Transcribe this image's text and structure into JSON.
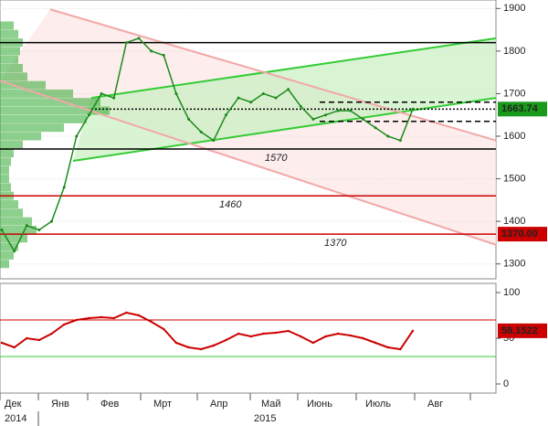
{
  "chart_data": {
    "type": "line",
    "price": {
      "name": "price",
      "color": "#1a8a1a",
      "values": [
        1380,
        1330,
        1390,
        1380,
        1400,
        1480,
        1600,
        1650,
        1700,
        1690,
        1820,
        1830,
        1800,
        1790,
        1700,
        1640,
        1610,
        1590,
        1650,
        1690,
        1680,
        1700,
        1690,
        1710,
        1670,
        1640,
        1650,
        1660,
        1660,
        1640,
        1620,
        1600,
        1590,
        1663.74
      ]
    },
    "ylim": [
      1265,
      1920
    ],
    "yticks": [
      1300,
      1400,
      1500,
      1600,
      1700,
      1800,
      1900
    ],
    "levels": [
      {
        "value": 1820,
        "color": "#000000"
      },
      {
        "value": 1570,
        "color": "#000000",
        "label": "1570"
      },
      {
        "value": 1460,
        "color": "#cc0000",
        "label": "1460"
      },
      {
        "value": 1370,
        "color": "#cc0000",
        "label": "1370"
      }
    ],
    "dashed_levels": [
      1680,
      1635
    ],
    "channels": [
      {
        "color": "#33cc33",
        "start": 1542,
        "end": 1690
      },
      {
        "color": "#33cc33",
        "start": 1690,
        "end": 1830
      },
      {
        "color": "#f2a8a8",
        "start": 1898,
        "end": 1590
      },
      {
        "color": "#f2a8a8",
        "start": 1730,
        "end": 1345
      }
    ],
    "price_tags": [
      {
        "value": 1663.74,
        "color": "#1a9a1a"
      },
      {
        "value": 1370,
        "label": "1370.00",
        "color": "#cc0000"
      }
    ],
    "volume_profile": {
      "color": "#2fa82f",
      "prices": [
        1300,
        1320,
        1340,
        1360,
        1380,
        1400,
        1420,
        1440,
        1460,
        1480,
        1500,
        1520,
        1540,
        1560,
        1580,
        1600,
        1620,
        1640,
        1660,
        1680,
        1700,
        1720,
        1740,
        1760,
        1780,
        1800,
        1820,
        1840,
        1860
      ],
      "values": [
        10,
        15,
        20,
        30,
        40,
        35,
        25,
        20,
        15,
        12,
        10,
        10,
        12,
        15,
        25,
        45,
        70,
        95,
        120,
        110,
        80,
        50,
        30,
        25,
        20,
        22,
        25,
        20,
        15
      ]
    },
    "rsi": {
      "name": "RSI",
      "color": "#cc0000",
      "values": [
        45,
        40,
        50,
        48,
        55,
        65,
        70,
        72,
        73,
        72,
        78,
        75,
        68,
        60,
        45,
        40,
        38,
        42,
        48,
        55,
        52,
        55,
        56,
        58,
        52,
        45,
        52,
        55,
        53,
        50,
        45,
        40,
        38,
        58.1522
      ]
    },
    "rsi_ylim": [
      -10,
      110
    ],
    "rsi_yticks": [
      0,
      50,
      100
    ],
    "rsi_levels": [
      {
        "value": 70,
        "color": "#cc0000"
      },
      {
        "value": 30,
        "color": "#33cc33"
      }
    ],
    "rsi_tag": {
      "value": 58.1522,
      "color": "#cc0000"
    },
    "months": [
      "Дек",
      "Янв",
      "Фев",
      "Мрт",
      "Апр",
      "Май",
      "Июнь",
      "Июль",
      "Авг"
    ],
    "years": [
      "2014",
      "2015"
    ]
  }
}
